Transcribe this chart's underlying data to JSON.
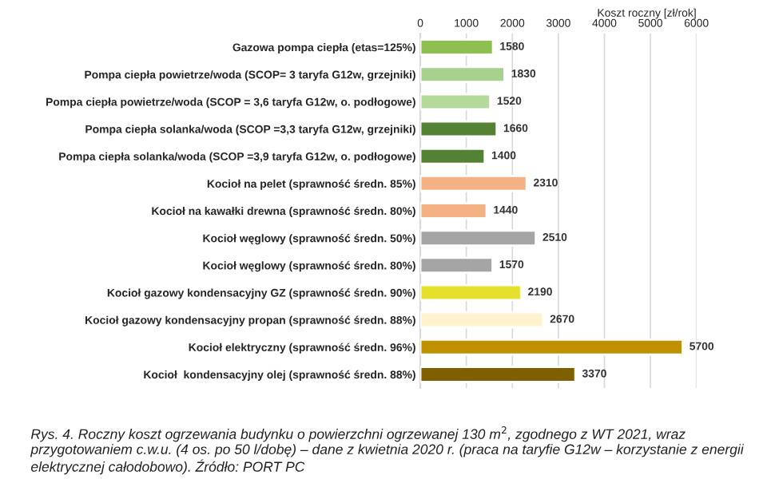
{
  "chart_data": {
    "type": "bar",
    "orientation": "horizontal",
    "xlabel": "Koszt roczny [zł/rok]",
    "categories": [
      "Gazowa pompa ciepła (etas=125%)",
      "Pompa ciepła powietrze/woda (SCOP= 3 taryfa G12w, grzejniki)",
      "Pompa ciepła powietrze/woda (SCOP = 3,6 taryfa G12w, o. podłogowe)",
      "Pompa ciepła solanka/woda (SCOP =3,3 taryfa G12w, grzejniki)",
      "Pompa ciepła solanka/woda (SCOP =3,9 taryfa G12w, o. podłogowe)",
      "Kocioł na pelet (sprawność średn. 85%)",
      "Kocioł na kawałki drewna (sprawność średn. 80%)",
      "Kocioł węglowy (sprawność średn. 50%)",
      "Kocioł węglowy (sprawność średn. 80%)",
      "Kocioł gazowy kondensacyjny GZ (sprawność średn. 90%)",
      "Kocioł gazowy kondensacyjny propan (sprawność średn. 88%)",
      "Kocioł elektryczny (sprawność średn. 96%)",
      "Kocioł  kondensacyjny olej (sprawność średn. 88%)"
    ],
    "values": [
      1580,
      1830,
      1520,
      1660,
      1400,
      2310,
      1440,
      2510,
      1570,
      2190,
      2670,
      5700,
      3370
    ],
    "colors": [
      "#8dc04f",
      "#a9d18e",
      "#b5d99a",
      "#548235",
      "#548235",
      "#f4b183",
      "#f4b183",
      "#a5a5a5",
      "#a5a5a5",
      "#e6df2c",
      "#fff2cc",
      "#bf9000",
      "#7f6000"
    ],
    "data_labels": true,
    "xlim": [
      0,
      6000
    ],
    "xticks": [
      0,
      1000,
      2000,
      3000,
      4000,
      5000,
      6000
    ],
    "grid": "x",
    "legend": false,
    "annotations": [
      "Rys. 4. Roczny koszt ogrzewania budynku o powierzchni ogrzewanej 130 m$^{2}$, zgodnego z WT 2021, wraz przygotowaniem c.w.u. (4 os. po 50 l/dobę) – dane z kwietnia 2020 r. (praca na taryfie G12w – korzystanie z energii elektrycznej całodobowo). Źródło: PORT PC"
    ]
  }
}
